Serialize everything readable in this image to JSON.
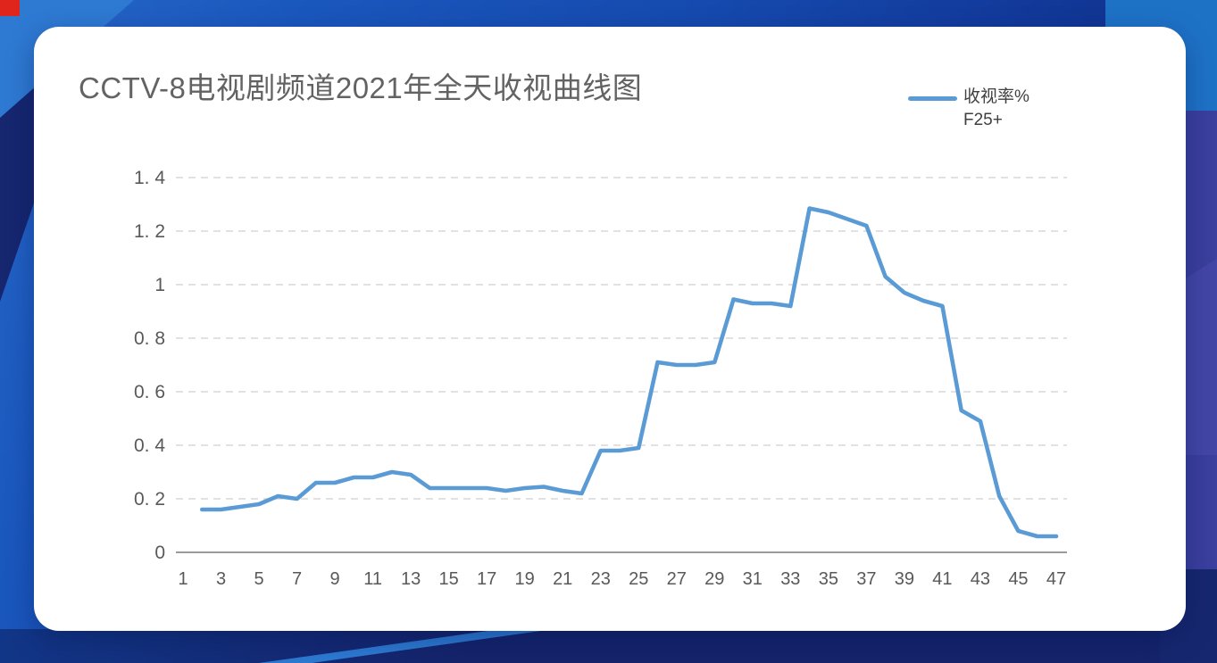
{
  "palette": {
    "series_line": "#5B9BD5",
    "grid_line": "#d7d7d7",
    "axis_line": "#9a9a9a",
    "tick_label": "#595959",
    "title_text": "#636363",
    "legend_text": "#404040",
    "bg_base_blue": "#164aae",
    "bg_navy": "#16266f",
    "bg_bright_blue": "#2e79d2",
    "bg_indigo": "#3b3f9d",
    "bg_red_corner": "#e0251c",
    "card_background": "#ffffff"
  },
  "chart_data": {
    "type": "line",
    "title": "CCTV-8电视剧频道2021年全天收视曲线图",
    "legend": {
      "label_line1": "收视率%",
      "label_line2": "F25+",
      "position": "top-right"
    },
    "xlim": [
      1,
      48
    ],
    "ylim": [
      0,
      1.4
    ],
    "grid": "horizontal-dashed",
    "x_ticks": [
      1,
      3,
      5,
      7,
      9,
      11,
      13,
      15,
      17,
      19,
      21,
      23,
      25,
      27,
      29,
      31,
      33,
      35,
      37,
      39,
      41,
      43,
      45,
      47
    ],
    "x_tick_labels": [
      "1",
      "3",
      "5",
      "7",
      "9",
      "11",
      "13",
      "15",
      "17",
      "19",
      "21",
      "23",
      "25",
      "27",
      "29",
      "31",
      "33",
      "35",
      "37",
      "39",
      "41",
      "43",
      "45",
      "47"
    ],
    "y_ticks": [
      0,
      0.2,
      0.4,
      0.6,
      0.8,
      1,
      1.2,
      1.4
    ],
    "y_tick_labels": [
      "0",
      "0. 2",
      "0. 4",
      "0. 6",
      "0. 8",
      "1",
      "1. 2",
      "1. 4"
    ],
    "series": [
      {
        "name": "收视率% F25+",
        "color": "#5B9BD5",
        "x": [
          2,
          3,
          4,
          5,
          6,
          7,
          8,
          9,
          10,
          11,
          12,
          13,
          14,
          15,
          16,
          17,
          18,
          19,
          20,
          21,
          22,
          23,
          24,
          25,
          26,
          27,
          28,
          29,
          30,
          31,
          32,
          33,
          34,
          35,
          36,
          37,
          38,
          39,
          40,
          41,
          42,
          43,
          44,
          45,
          46,
          47
        ],
        "values": [
          0.16,
          0.16,
          0.17,
          0.18,
          0.21,
          0.2,
          0.26,
          0.26,
          0.28,
          0.28,
          0.3,
          0.29,
          0.24,
          0.24,
          0.24,
          0.24,
          0.23,
          0.24,
          0.245,
          0.23,
          0.22,
          0.38,
          0.38,
          0.39,
          0.71,
          0.7,
          0.7,
          0.71,
          0.945,
          0.93,
          0.93,
          0.92,
          1.285,
          1.27,
          1.245,
          1.22,
          1.03,
          0.97,
          0.94,
          0.92,
          0.53,
          0.49,
          0.21,
          0.08,
          0.06,
          0.06
        ]
      }
    ]
  }
}
